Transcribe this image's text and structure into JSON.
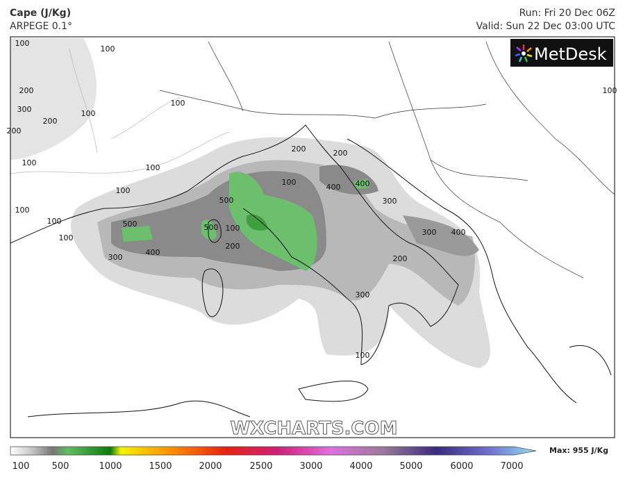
{
  "header": {
    "title": "Cape (J/Kg)",
    "model": "ARPEGE 0.1°",
    "run": "Run: Fri 20 Dec 06Z",
    "valid": "Valid: Sun 22 Dec 03:00 UTC"
  },
  "logo": "MetDesk",
  "watermark": "WXCHARTS.COM",
  "map": {
    "contour_labels": [
      100,
      100,
      200,
      300,
      200,
      100,
      200,
      100,
      100,
      100,
      100,
      100,
      100,
      100,
      500,
      500,
      500,
      100,
      200,
      400,
      300,
      200,
      200,
      100,
      400,
      400,
      300,
      300,
      400,
      200,
      300,
      100,
      100
    ]
  },
  "legend": {
    "ticks": [
      100,
      500,
      1000,
      1500,
      2000,
      2500,
      3000,
      4000,
      5000,
      6000,
      7000
    ],
    "max_label": "Max: 955 J/Kg"
  }
}
